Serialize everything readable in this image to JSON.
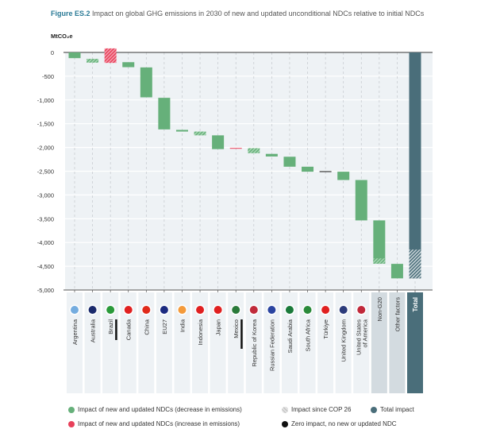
{
  "figure_label": "Figure ES.2",
  "title": "Impact on global GHG emissions in 2030 of new and updated unconditional NDCs relative to initial NDCs",
  "colors": {
    "decrease": "#66b07a",
    "increase": "#e8405a",
    "since_cop26": "#c8c8c8",
    "total": "#4a6e7a",
    "zero": "#111111",
    "plot_bg": "#eef2f5"
  },
  "chart_data": {
    "type": "bar",
    "subtype": "waterfall",
    "ylabel": "MtCO₂e",
    "ylim": [
      -5000,
      0
    ],
    "yticks": [
      0,
      -500,
      -1000,
      -1500,
      -2000,
      -2500,
      -3000,
      -3500,
      -4000,
      -4500,
      -5000
    ],
    "ytick_labels": [
      "0",
      "-500",
      "-1,000",
      "-1,500",
      "-2,000",
      "-2,500",
      "-3,000",
      "-3,500",
      "-4,000",
      "-4,500",
      "-5,000"
    ],
    "grid": true,
    "categories": [
      "Argentina",
      "Australia",
      "Brazil",
      "Canada",
      "China",
      "EU27",
      "India",
      "Indonesia",
      "Japan",
      "Mexico",
      "Republic of Korea",
      "Russian Federation",
      "Saudi Arabia",
      "South Africa",
      "Türkiye",
      "United Kingdom",
      "United States of America",
      "Non-G20",
      "Other factors",
      "Total"
    ],
    "category_label_lines": [
      [
        "Argentina"
      ],
      [
        "Australia"
      ],
      [
        "Brazil"
      ],
      [
        "Canada"
      ],
      [
        "China"
      ],
      [
        "EU27"
      ],
      [
        "India"
      ],
      [
        "Indonesia"
      ],
      [
        "Japan"
      ],
      [
        "Mexico"
      ],
      [
        "Republic of Korea"
      ],
      [
        "Russian Federation"
      ],
      [
        "Saudi Arabia"
      ],
      [
        "South Africa"
      ],
      [
        "Türkiye"
      ],
      [
        "United Kingdom"
      ],
      [
        "United States",
        "of America"
      ],
      [
        "Non-G20"
      ],
      [
        "Other factors"
      ],
      [
        "Total"
      ]
    ],
    "flags": [
      "argentina",
      "australia",
      "brazil",
      "canada",
      "china",
      "eu",
      "india",
      "indonesia",
      "japan",
      "mexico",
      "korea",
      "russia",
      "saudi",
      "southafrica",
      "turkiye",
      "uk",
      "usa",
      null,
      null,
      null
    ],
    "label_markers": [
      "Brazil",
      "Mexico"
    ],
    "bars": [
      {
        "from": 0,
        "to": -120,
        "type": "decrease",
        "since_cop26": false
      },
      {
        "from": -135,
        "to": -215,
        "type": "decrease",
        "since_cop26": true
      },
      {
        "from": 85,
        "to": -220,
        "type": "increase",
        "since_cop26": true
      },
      {
        "from": -205,
        "to": -310,
        "type": "decrease",
        "since_cop26": false
      },
      {
        "from": -315,
        "to": -945,
        "type": "decrease",
        "since_cop26": false
      },
      {
        "from": -955,
        "to": -1620,
        "type": "decrease",
        "since_cop26": false
      },
      {
        "from": -1630,
        "to": -1665,
        "type": "decrease",
        "since_cop26": false
      },
      {
        "from": -1665,
        "to": -1745,
        "type": "decrease",
        "since_cop26": true
      },
      {
        "from": -1745,
        "to": -2035,
        "type": "decrease",
        "since_cop26": false
      },
      {
        "from": -2010,
        "to": -2020,
        "type": "increase",
        "since_cop26": false
      },
      {
        "from": -2015,
        "to": -2120,
        "type": "decrease",
        "since_cop26": true
      },
      {
        "from": -2135,
        "to": -2190,
        "type": "decrease",
        "since_cop26": false
      },
      {
        "from": -2195,
        "to": -2405,
        "type": "decrease",
        "since_cop26": false
      },
      {
        "from": -2405,
        "to": -2510,
        "type": "decrease",
        "since_cop26": false
      },
      {
        "from": -2500,
        "to": -2510,
        "type": "zero",
        "since_cop26": false
      },
      {
        "from": -2510,
        "to": -2685,
        "type": "decrease",
        "since_cop26": false
      },
      {
        "from": -2685,
        "to": -3535,
        "type": "decrease",
        "since_cop26": false
      },
      {
        "from": -3535,
        "to": -4445,
        "type": "decrease",
        "since_cop26": false,
        "since_cop26_part": [
          -4335,
          -4445
        ]
      },
      {
        "from": -4450,
        "to": -4755,
        "type": "decrease",
        "since_cop26": false
      },
      {
        "from": 0,
        "to": -4755,
        "type": "total",
        "since_cop26": false,
        "since_cop26_part": [
          -4150,
          -4755
        ]
      }
    ],
    "legend": [
      {
        "label": "Impact of new and updated NDCs (decrease in emissions)",
        "type": "decrease"
      },
      {
        "label": "Impact since COP 26",
        "type": "since_cop26"
      },
      {
        "label": "Total impact",
        "type": "total"
      },
      {
        "label": "Impact of new and updated NDCs (increase in emissions)",
        "type": "increase"
      },
      {
        "label": "Zero impact, no new or updated NDC",
        "type": "zero"
      }
    ],
    "legend_position": "bottom"
  }
}
